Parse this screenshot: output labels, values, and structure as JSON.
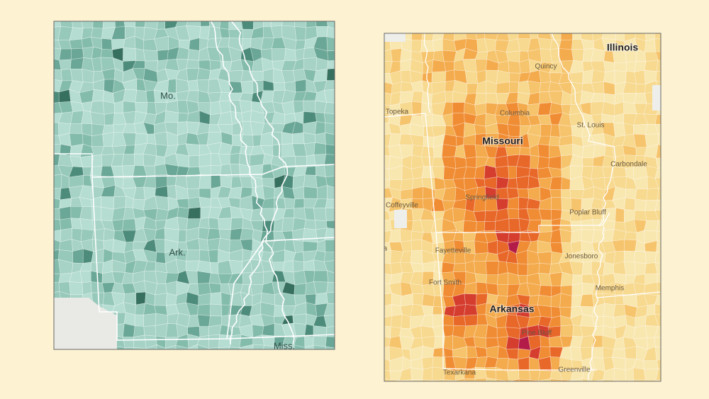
{
  "left_map": {
    "labels": [
      "Mo.",
      "Ark.",
      "Miss."
    ]
  },
  "right_map": {
    "labels": [
      "Illinois",
      "Missouri",
      "Arkansas",
      "Quincy",
      "Topeka",
      "Columbia",
      "St. Louis",
      "Carbondale",
      "Coffeyville",
      "Springfield",
      "Poplar Bluff",
      "Tulsa",
      "Fayetteville",
      "Jonesboro",
      "Fort Smith",
      "Memphis",
      "Pine Bluff",
      "Texarkana",
      "Greenville"
    ]
  }
}
